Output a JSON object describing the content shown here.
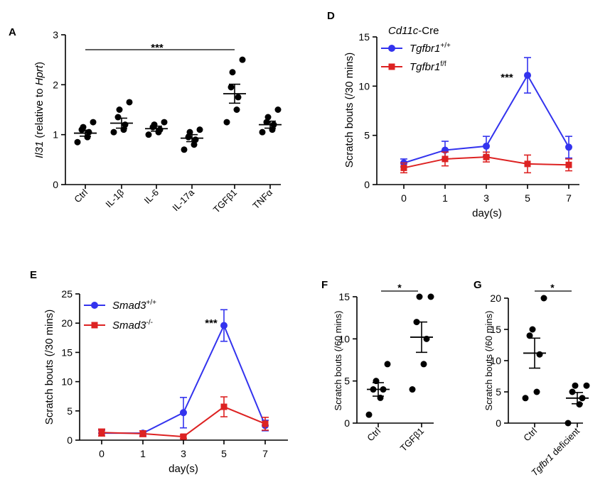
{
  "colors": {
    "blue": "#3333ee",
    "red": "#dd2222",
    "black": "#000000"
  },
  "chart_data": [
    {
      "panel": "A",
      "type": "scatter",
      "ylabel_italic": "Il31",
      "ylabel_mid": " (relative to ",
      "ylabel_italic2": "Hprt",
      "ylabel_end": ")",
      "ylim": [
        0,
        3
      ],
      "yticks": [
        "0",
        "1",
        "2",
        "3"
      ],
      "categories": [
        "Ctrl",
        "IL-1β",
        "IL-6",
        "IL-17a",
        "TGFβ1",
        "TNFα"
      ],
      "points": [
        [
          0.85,
          0.95,
          1.05,
          1.1,
          1.15,
          1.25
        ],
        [
          1.05,
          1.1,
          1.2,
          1.35,
          1.5,
          1.65
        ],
        [
          1.0,
          1.05,
          1.1,
          1.15,
          1.2,
          1.25
        ],
        [
          0.7,
          0.8,
          0.9,
          0.95,
          1.05,
          1.1
        ],
        [
          1.25,
          1.5,
          1.75,
          1.95,
          2.25,
          2.5
        ],
        [
          1.05,
          1.1,
          1.2,
          1.25,
          1.35,
          1.5
        ]
      ],
      "mean": [
        1.03,
        1.23,
        1.12,
        0.93,
        1.82,
        1.2
      ],
      "sem": [
        0.06,
        0.1,
        0.05,
        0.07,
        0.19,
        0.07
      ],
      "significance": "***"
    },
    {
      "panel": "D",
      "type": "line",
      "ylabel": "Scratch bouts (/30 mins)",
      "xlabel": "day(s)",
      "ylim": [
        0,
        15
      ],
      "yticks": [
        "0",
        "5",
        "10",
        "15"
      ],
      "x": [
        "0",
        "1",
        "3",
        "5",
        "7"
      ],
      "legend_title_italic": "Cd11c",
      "legend_title_rest": "-Cre",
      "series": [
        {
          "name": "Tgfbr1",
          "sup": "+/+",
          "color": "blue",
          "marker": "circle",
          "values": [
            2.2,
            3.5,
            3.9,
            11.1,
            3.8
          ],
          "err": [
            0.4,
            0.9,
            1.0,
            1.8,
            1.1
          ]
        },
        {
          "name": "Tgfbr1",
          "sup": "f/f",
          "color": "red",
          "marker": "square",
          "values": [
            1.7,
            2.6,
            2.8,
            2.1,
            2.0
          ],
          "err": [
            0.5,
            0.7,
            0.5,
            0.9,
            0.6
          ]
        }
      ],
      "significance": "***"
    },
    {
      "panel": "E",
      "type": "line",
      "ylabel": "Scratch bouts (/30 mins)",
      "xlabel": "day(s)",
      "ylim": [
        0,
        25
      ],
      "yticks": [
        "0",
        "5",
        "10",
        "15",
        "20",
        "25"
      ],
      "x": [
        "0",
        "1",
        "3",
        "5",
        "7"
      ],
      "series": [
        {
          "name": "Smad3",
          "sup": "+/+",
          "color": "blue",
          "marker": "circle",
          "values": [
            1.2,
            1.2,
            4.7,
            19.6,
            2.5
          ],
          "err": [
            0.5,
            0.4,
            2.6,
            2.7,
            0.9
          ]
        },
        {
          "name": "Smad3",
          "sup": "-/-",
          "color": "red",
          "marker": "square",
          "values": [
            1.3,
            1.1,
            0.6,
            5.7,
            2.8
          ],
          "err": [
            0.6,
            0.5,
            0.3,
            1.7,
            1.1
          ]
        }
      ],
      "significance": "***"
    },
    {
      "panel": "F",
      "type": "scatter",
      "ylabel": "Scratch bouts (/60 mins)",
      "ylim": [
        0,
        15
      ],
      "yticks": [
        "0",
        "5",
        "10",
        "15"
      ],
      "categories": [
        "Ctrl",
        "TGFβ1"
      ],
      "points": [
        [
          1.0,
          3.0,
          4.0,
          4.0,
          5.0,
          7.0
        ],
        [
          4.0,
          7.0,
          10.0,
          12.0,
          15.0,
          15.0
        ]
      ],
      "mean": [
        4.0,
        10.2
      ],
      "sem": [
        0.8,
        1.8
      ],
      "significance": "*"
    },
    {
      "panel": "G",
      "type": "scatter",
      "ylabel": "Scratch bouts (/60 mins)",
      "ylim": [
        0,
        20
      ],
      "yticks": [
        "0",
        "5",
        "10",
        "15",
        "20"
      ],
      "categories": [
        "Ctrl",
        "deficient"
      ],
      "category_italic_prefix": [
        "",
        "Tgfbr1"
      ],
      "points": [
        [
          4.0,
          5.0,
          11.0,
          14.0,
          15.0,
          20.0
        ],
        [
          0.0,
          3.0,
          4.0,
          5.0,
          6.0,
          6.0
        ]
      ],
      "mean": [
        11.2,
        4.0
      ],
      "sem": [
        2.4,
        0.9
      ],
      "significance": "*"
    }
  ]
}
